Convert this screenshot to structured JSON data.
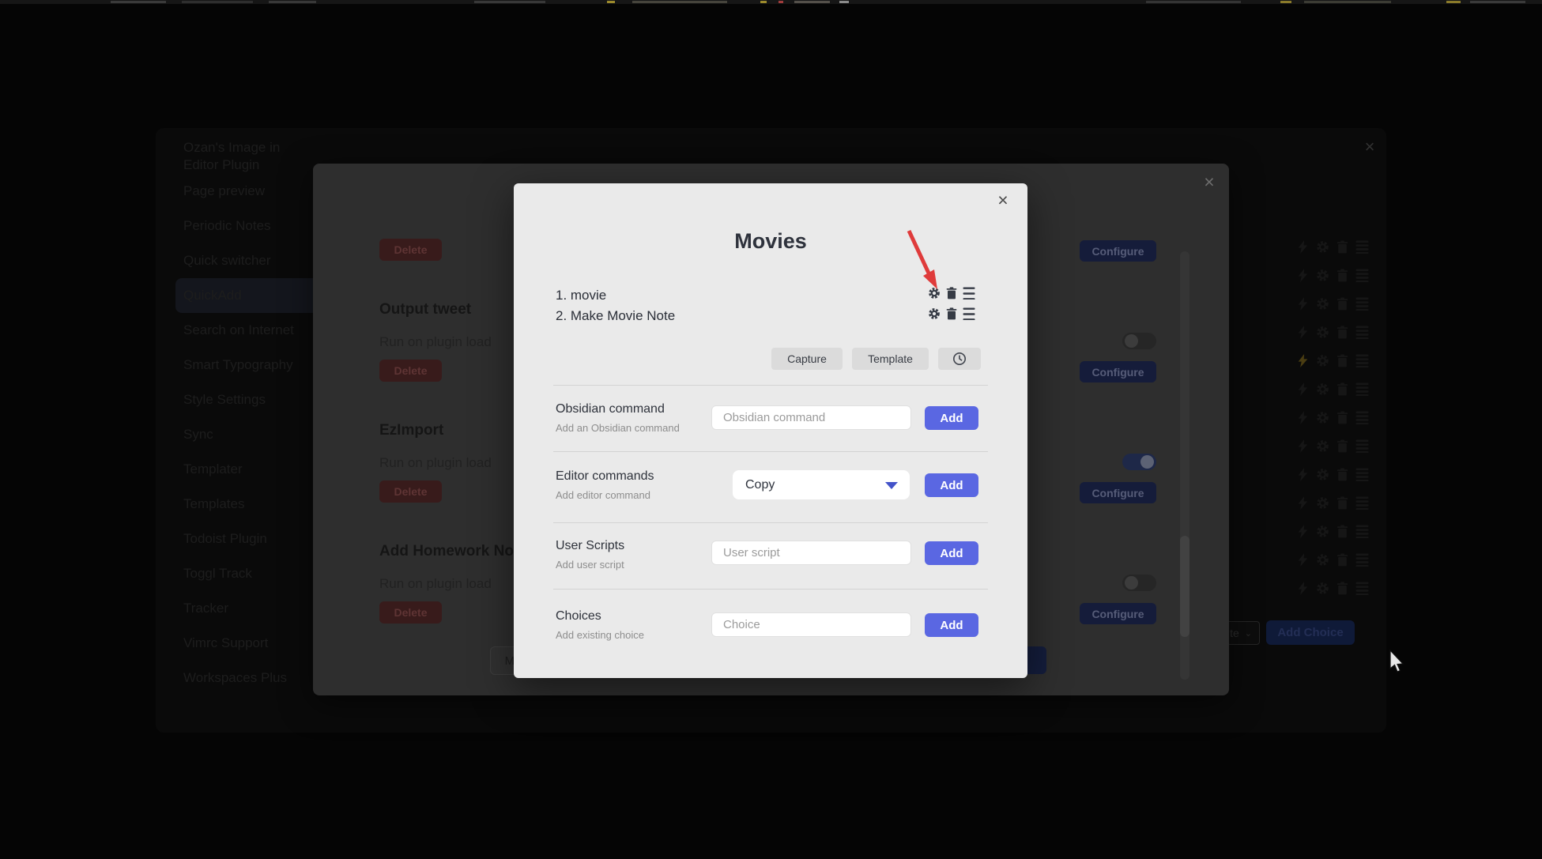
{
  "colors": {
    "accent_blue": "#5a67e2",
    "arrow_red": "#df3b3b",
    "amber_bolt": "#4a3d12",
    "settings_icon": "#161616",
    "modal_icon": "#363b45"
  },
  "settings_dialog": {
    "close_icon": "×",
    "sidebar": {
      "items": [
        "Ozan's Image in Editor Plugin",
        "Page preview",
        "Periodic Notes",
        "Quick switcher",
        "QuickAdd",
        "Search on Internet",
        "Smart Typography",
        "Style Settings",
        "Sync",
        "Templater",
        "Templates",
        "Todoist Plugin",
        "Toggl Track",
        "Tracker",
        "Vimrc Support",
        "Workspaces Plus"
      ],
      "active_item": "QuickAdd"
    },
    "choice_rows": {
      "count": 13,
      "icons": [
        "lightning-icon",
        "gear-icon",
        "trash-icon",
        "menu-icon"
      ],
      "highlighted_bolt_row_index": 4
    },
    "footer": {
      "type_select_visible_fragment": "te",
      "chevron": "⌄",
      "add_choice_label": "Add Choice"
    }
  },
  "macro_dialog": {
    "close_icon": "×",
    "partially_visible_macro": {
      "delete_label": "Delete",
      "configure_label": "Configure"
    },
    "run_label": "Run on plugin load",
    "delete_label": "Delete",
    "configure_label": "Configure",
    "macros": [
      {
        "name": "Output tweet",
        "enabled": false
      },
      {
        "name": "EzImport",
        "enabled": true
      },
      {
        "name": "Add Homework Notes",
        "enabled": false
      }
    ],
    "footer_partial_button_label": "Ma"
  },
  "movies_modal": {
    "title": "Movies",
    "close_icon": "×",
    "commands": [
      "1. movie",
      "2. Make Movie Note"
    ],
    "command_icons": [
      "gear-icon",
      "trash-icon",
      "menu-icon"
    ],
    "type_buttons": {
      "capture": "Capture",
      "template": "Template",
      "clock": "clock-icon"
    },
    "rows": [
      {
        "label": "Obsidian command",
        "description": "Add an Obsidian command",
        "control": "input",
        "placeholder": "Obsidian command",
        "button": "Add"
      },
      {
        "label": "Editor commands",
        "description": "Add editor command",
        "control": "select",
        "value": "Copy",
        "button": "Add"
      },
      {
        "label": "User Scripts",
        "description": "Add user script",
        "control": "input",
        "placeholder": "User script",
        "button": "Add"
      },
      {
        "label": "Choices",
        "description": "Add existing choice",
        "control": "input",
        "placeholder": "Choice",
        "button": "Add"
      }
    ]
  }
}
